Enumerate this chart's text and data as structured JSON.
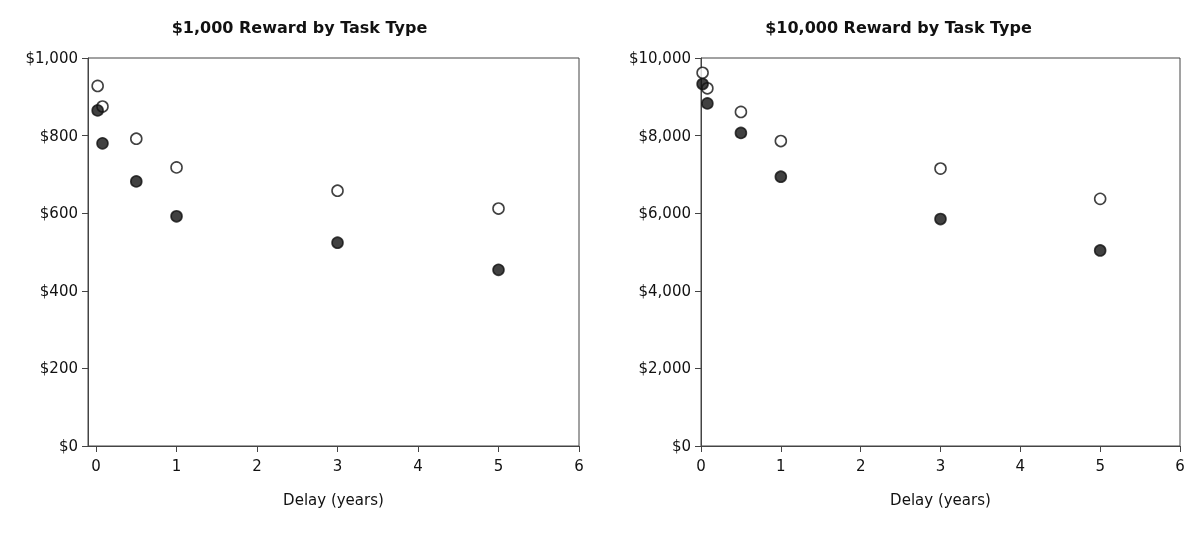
{
  "chart_data": [
    {
      "type": "scatter",
      "title": "$1,000 Reward by Task Type",
      "xlabel": "Delay (years)",
      "xlim": [
        -0.1,
        6
      ],
      "xticks": [
        0,
        1,
        2,
        3,
        4,
        5,
        6
      ],
      "ylim": [
        0,
        1000
      ],
      "yticks": [
        {
          "value": 0,
          "label": "$0"
        },
        {
          "value": 200,
          "label": "$200"
        },
        {
          "value": 400,
          "label": "$400"
        },
        {
          "value": 600,
          "label": "$600"
        },
        {
          "value": 800,
          "label": "$800"
        },
        {
          "value": 1000,
          "label": "$1,000"
        }
      ],
      "grid": false,
      "marker": "circle",
      "x": [
        0.02,
        0.08,
        0.5,
        1,
        3,
        5
      ],
      "series": [
        {
          "color": "#ffffff",
          "values": [
            928,
            875,
            792,
            718,
            658,
            612
          ]
        },
        {
          "color": "#111111",
          "values": [
            865,
            780,
            682,
            592,
            524,
            454
          ]
        }
      ]
    },
    {
      "type": "scatter",
      "title": "$10,000 Reward by Task Type",
      "xlabel": "Delay (years)",
      "xlim": [
        0,
        6
      ],
      "xticks": [
        0,
        1,
        2,
        3,
        4,
        5,
        6
      ],
      "ylim": [
        0,
        10000
      ],
      "yticks": [
        {
          "value": 0,
          "label": "$0"
        },
        {
          "value": 2000,
          "label": "$2,000"
        },
        {
          "value": 4000,
          "label": "$4,000"
        },
        {
          "value": 6000,
          "label": "$6,000"
        },
        {
          "value": 8000,
          "label": "$8,000"
        },
        {
          "value": 10000,
          "label": "$10,000"
        }
      ],
      "grid": false,
      "marker": "circle",
      "x": [
        0.02,
        0.08,
        0.5,
        1,
        3,
        5
      ],
      "series": [
        {
          "color": "#ffffff",
          "values": [
            9620,
            9220,
            8610,
            7860,
            7150,
            6370
          ]
        },
        {
          "color": "#111111",
          "values": [
            9330,
            8830,
            8070,
            6940,
            5850,
            5040
          ]
        }
      ]
    }
  ]
}
